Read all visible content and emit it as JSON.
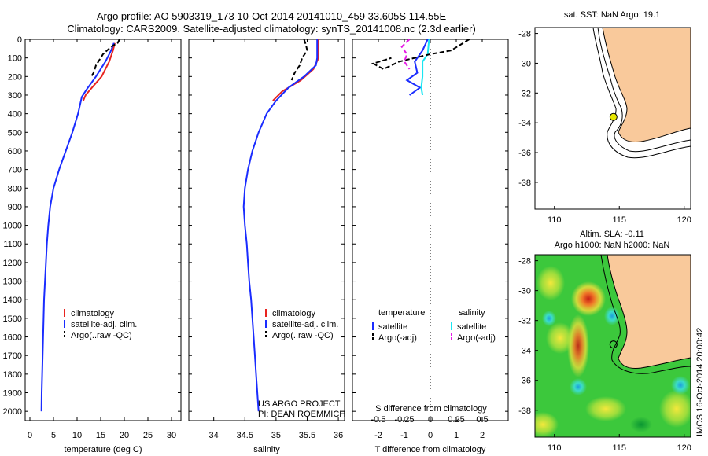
{
  "header": {
    "line1": "Argo profile: AO 5903319_173 10-Oct-2014 20141010_459 33.605S 114.55E",
    "line2": "Climatology: CARS2009. Satellite-adjusted climatology: synTS_20141008.nc (2.3d earlier)"
  },
  "colors": {
    "climatology": "#e8231f",
    "satellite": "#1a2cff",
    "argo": "#000000",
    "cyan": "#19e6f2",
    "magenta": "#e619e6",
    "land": "#f9c99b",
    "axes": "#000000"
  },
  "chart_data": [
    {
      "id": "temperature",
      "type": "line",
      "xlabel": "temperature (deg C)",
      "ylabel": "",
      "xlim": [
        -1,
        32
      ],
      "ylim": [
        2050,
        0
      ],
      "xticks": [
        0,
        5,
        10,
        15,
        20,
        25,
        30
      ],
      "yticks": [
        0,
        100,
        200,
        300,
        400,
        500,
        600,
        700,
        800,
        900,
        1000,
        1100,
        1200,
        1300,
        1400,
        1500,
        1600,
        1700,
        1800,
        1900,
        2000
      ],
      "series": [
        {
          "name": "climatology",
          "style": "solid",
          "color": "climatology",
          "points": [
            [
              18.0,
              20
            ],
            [
              17.6,
              60
            ],
            [
              16.8,
              120
            ],
            [
              15.2,
              200
            ],
            [
              12.8,
              270
            ],
            [
              11.8,
              300
            ],
            [
              11.3,
              330
            ]
          ]
        },
        {
          "name": "satellite-adj. clim.",
          "style": "solid",
          "color": "satellite",
          "points": [
            [
              17.8,
              20
            ],
            [
              17.2,
              60
            ],
            [
              16.0,
              120
            ],
            [
              14.0,
              200
            ],
            [
              12.0,
              270
            ],
            [
              11.0,
              310
            ],
            [
              10.2,
              400
            ],
            [
              9.0,
              500
            ],
            [
              7.6,
              600
            ],
            [
              6.2,
              700
            ],
            [
              5.0,
              800
            ],
            [
              4.3,
              900
            ],
            [
              3.9,
              1000
            ],
            [
              3.6,
              1100
            ],
            [
              3.4,
              1200
            ],
            [
              3.2,
              1300
            ],
            [
              3.0,
              1400
            ],
            [
              2.9,
              1500
            ],
            [
              2.8,
              1600
            ],
            [
              2.7,
              1700
            ],
            [
              2.6,
              1800
            ],
            [
              2.5,
              1900
            ],
            [
              2.45,
              2000
            ]
          ]
        },
        {
          "name": "Argo(..raw -QC)",
          "style": "dashed",
          "color": "argo",
          "points": [
            [
              19.0,
              0
            ],
            [
              18.6,
              20
            ],
            [
              17.2,
              40
            ],
            [
              15.5,
              80
            ],
            [
              14.0,
              140
            ],
            [
              13.5,
              180
            ],
            [
              13.0,
              200
            ]
          ]
        }
      ],
      "legend": {
        "placement": "lower-center",
        "labels": [
          "climatology",
          "satellite-adj. clim.",
          "Argo(..raw -QC)"
        ]
      }
    },
    {
      "id": "salinity",
      "type": "line",
      "xlabel": "salinity",
      "ylabel": "",
      "xlim": [
        33.6,
        36.1
      ],
      "ylim": [
        2050,
        0
      ],
      "xticks": [
        34,
        34.5,
        35,
        35.5,
        36
      ],
      "xtick_labels": [
        "34",
        "34.5",
        "35",
        "35.5",
        "36"
      ],
      "series": [
        {
          "name": "climatology",
          "style": "solid",
          "color": "climatology",
          "points": [
            [
              35.68,
              0
            ],
            [
              35.68,
              60
            ],
            [
              35.67,
              110
            ],
            [
              35.6,
              160
            ],
            [
              35.4,
              220
            ],
            [
              35.1,
              280
            ],
            [
              34.95,
              330
            ]
          ]
        },
        {
          "name": "satellite-adj. clim.",
          "style": "solid",
          "color": "satellite",
          "points": [
            [
              35.66,
              0
            ],
            [
              35.66,
              100
            ],
            [
              35.64,
              140
            ],
            [
              35.45,
              200
            ],
            [
              35.2,
              260
            ],
            [
              35.0,
              330
            ],
            [
              34.85,
              400
            ],
            [
              34.72,
              500
            ],
            [
              34.62,
              600
            ],
            [
              34.55,
              700
            ],
            [
              34.5,
              800
            ],
            [
              34.48,
              900
            ],
            [
              34.5,
              1000
            ],
            [
              34.53,
              1100
            ],
            [
              34.55,
              1200
            ],
            [
              34.57,
              1300
            ],
            [
              34.6,
              1400
            ],
            [
              34.62,
              1500
            ],
            [
              34.64,
              1600
            ],
            [
              34.66,
              1700
            ],
            [
              34.68,
              1800
            ],
            [
              34.7,
              1900
            ],
            [
              34.72,
              2000
            ]
          ]
        },
        {
          "name": "Argo(..raw -QC)",
          "style": "dashed",
          "color": "argo",
          "points": [
            [
              35.45,
              0
            ],
            [
              35.48,
              30
            ],
            [
              35.5,
              60
            ],
            [
              35.42,
              100
            ],
            [
              35.38,
              140
            ],
            [
              35.3,
              180
            ],
            [
              35.25,
              220
            ]
          ]
        }
      ],
      "legend": {
        "placement": "lower-center",
        "labels": [
          "climatology",
          "satellite-adj. clim.",
          "Argo(..raw -QC)"
        ]
      },
      "annotation": [
        "US ARGO PROJECT",
        "PI: DEAN ROEMMICH"
      ]
    },
    {
      "id": "differences",
      "type": "line",
      "xlabel": "T difference from climatology",
      "xlabel_top": "S difference from climatology",
      "xlim": [
        -3,
        3
      ],
      "ylim": [
        2050,
        0
      ],
      "xticks": [
        -2,
        -1,
        0,
        1,
        2
      ],
      "s_ticks": [
        -0.5,
        -0.25,
        0,
        0.25,
        0.5
      ],
      "s_tick_labels": [
        "-0.5",
        "-0.25",
        "0",
        "0.25",
        "0.5"
      ],
      "series": [
        {
          "name": "temperature satellite",
          "style": "solid",
          "color": "satellite",
          "points": [
            [
              -0.1,
              0
            ],
            [
              -0.3,
              60
            ],
            [
              -0.6,
              120
            ],
            [
              -0.5,
              180
            ],
            [
              -0.9,
              220
            ],
            [
              -0.4,
              260
            ],
            [
              -0.8,
              300
            ]
          ]
        },
        {
          "name": "salinity satellite",
          "style": "solid",
          "color": "cyan",
          "points": [
            [
              -0.05,
              0
            ],
            [
              -0.1,
              80
            ],
            [
              -0.3,
              120
            ],
            [
              -0.3,
              200
            ],
            [
              -0.35,
              260
            ],
            [
              -0.3,
              300
            ]
          ]
        },
        {
          "name": "temperature Argo(-adj)",
          "style": "dashed",
          "color": "argo",
          "points": [
            [
              1.5,
              0
            ],
            [
              0.8,
              60
            ],
            [
              0.0,
              80
            ],
            [
              -1.2,
              120
            ],
            [
              -1.8,
              160
            ],
            [
              -2.2,
              130
            ],
            [
              -1.5,
              100
            ]
          ]
        },
        {
          "name": "salinity Argo(-adj)",
          "style": "dashed",
          "color": "magenta",
          "points": [
            [
              -0.8,
              0
            ],
            [
              -1.1,
              40
            ],
            [
              -0.9,
              80
            ],
            [
              -1.0,
              120
            ],
            [
              -0.8,
              160
            ]
          ]
        }
      ],
      "legend": {
        "placement": "lower-center",
        "col1_title": "temperature",
        "col2_title": "salinity",
        "col1": [
          "satellite",
          "Argo(-adj)"
        ],
        "col2": [
          "satellite",
          "Argo(-adj)"
        ]
      }
    }
  ],
  "map_sst": {
    "title": "sat. SST: NaN Argo: 19.1",
    "xlim": [
      108.5,
      120.5
    ],
    "ylim": [
      -39.8,
      -27.6
    ],
    "xticks": [
      110,
      115,
      120
    ],
    "yticks": [
      -28,
      -30,
      -32,
      -34,
      -36,
      -38
    ],
    "argo_position": [
      114.55,
      -33.605
    ]
  },
  "map_sla": {
    "title1": "Altim. SLA: -0.11",
    "title2": "Argo h1000: NaN h2000: NaN",
    "xlim": [
      108.5,
      120.5
    ],
    "ylim": [
      -39.8,
      -27.6
    ],
    "xticks": [
      110,
      115,
      120
    ],
    "yticks": [
      -28,
      -30,
      -32,
      -34,
      -36,
      -38
    ],
    "argo_position": [
      114.55,
      -33.605
    ],
    "credit": "IMOS 16-Oct-2014 20:00:42"
  }
}
